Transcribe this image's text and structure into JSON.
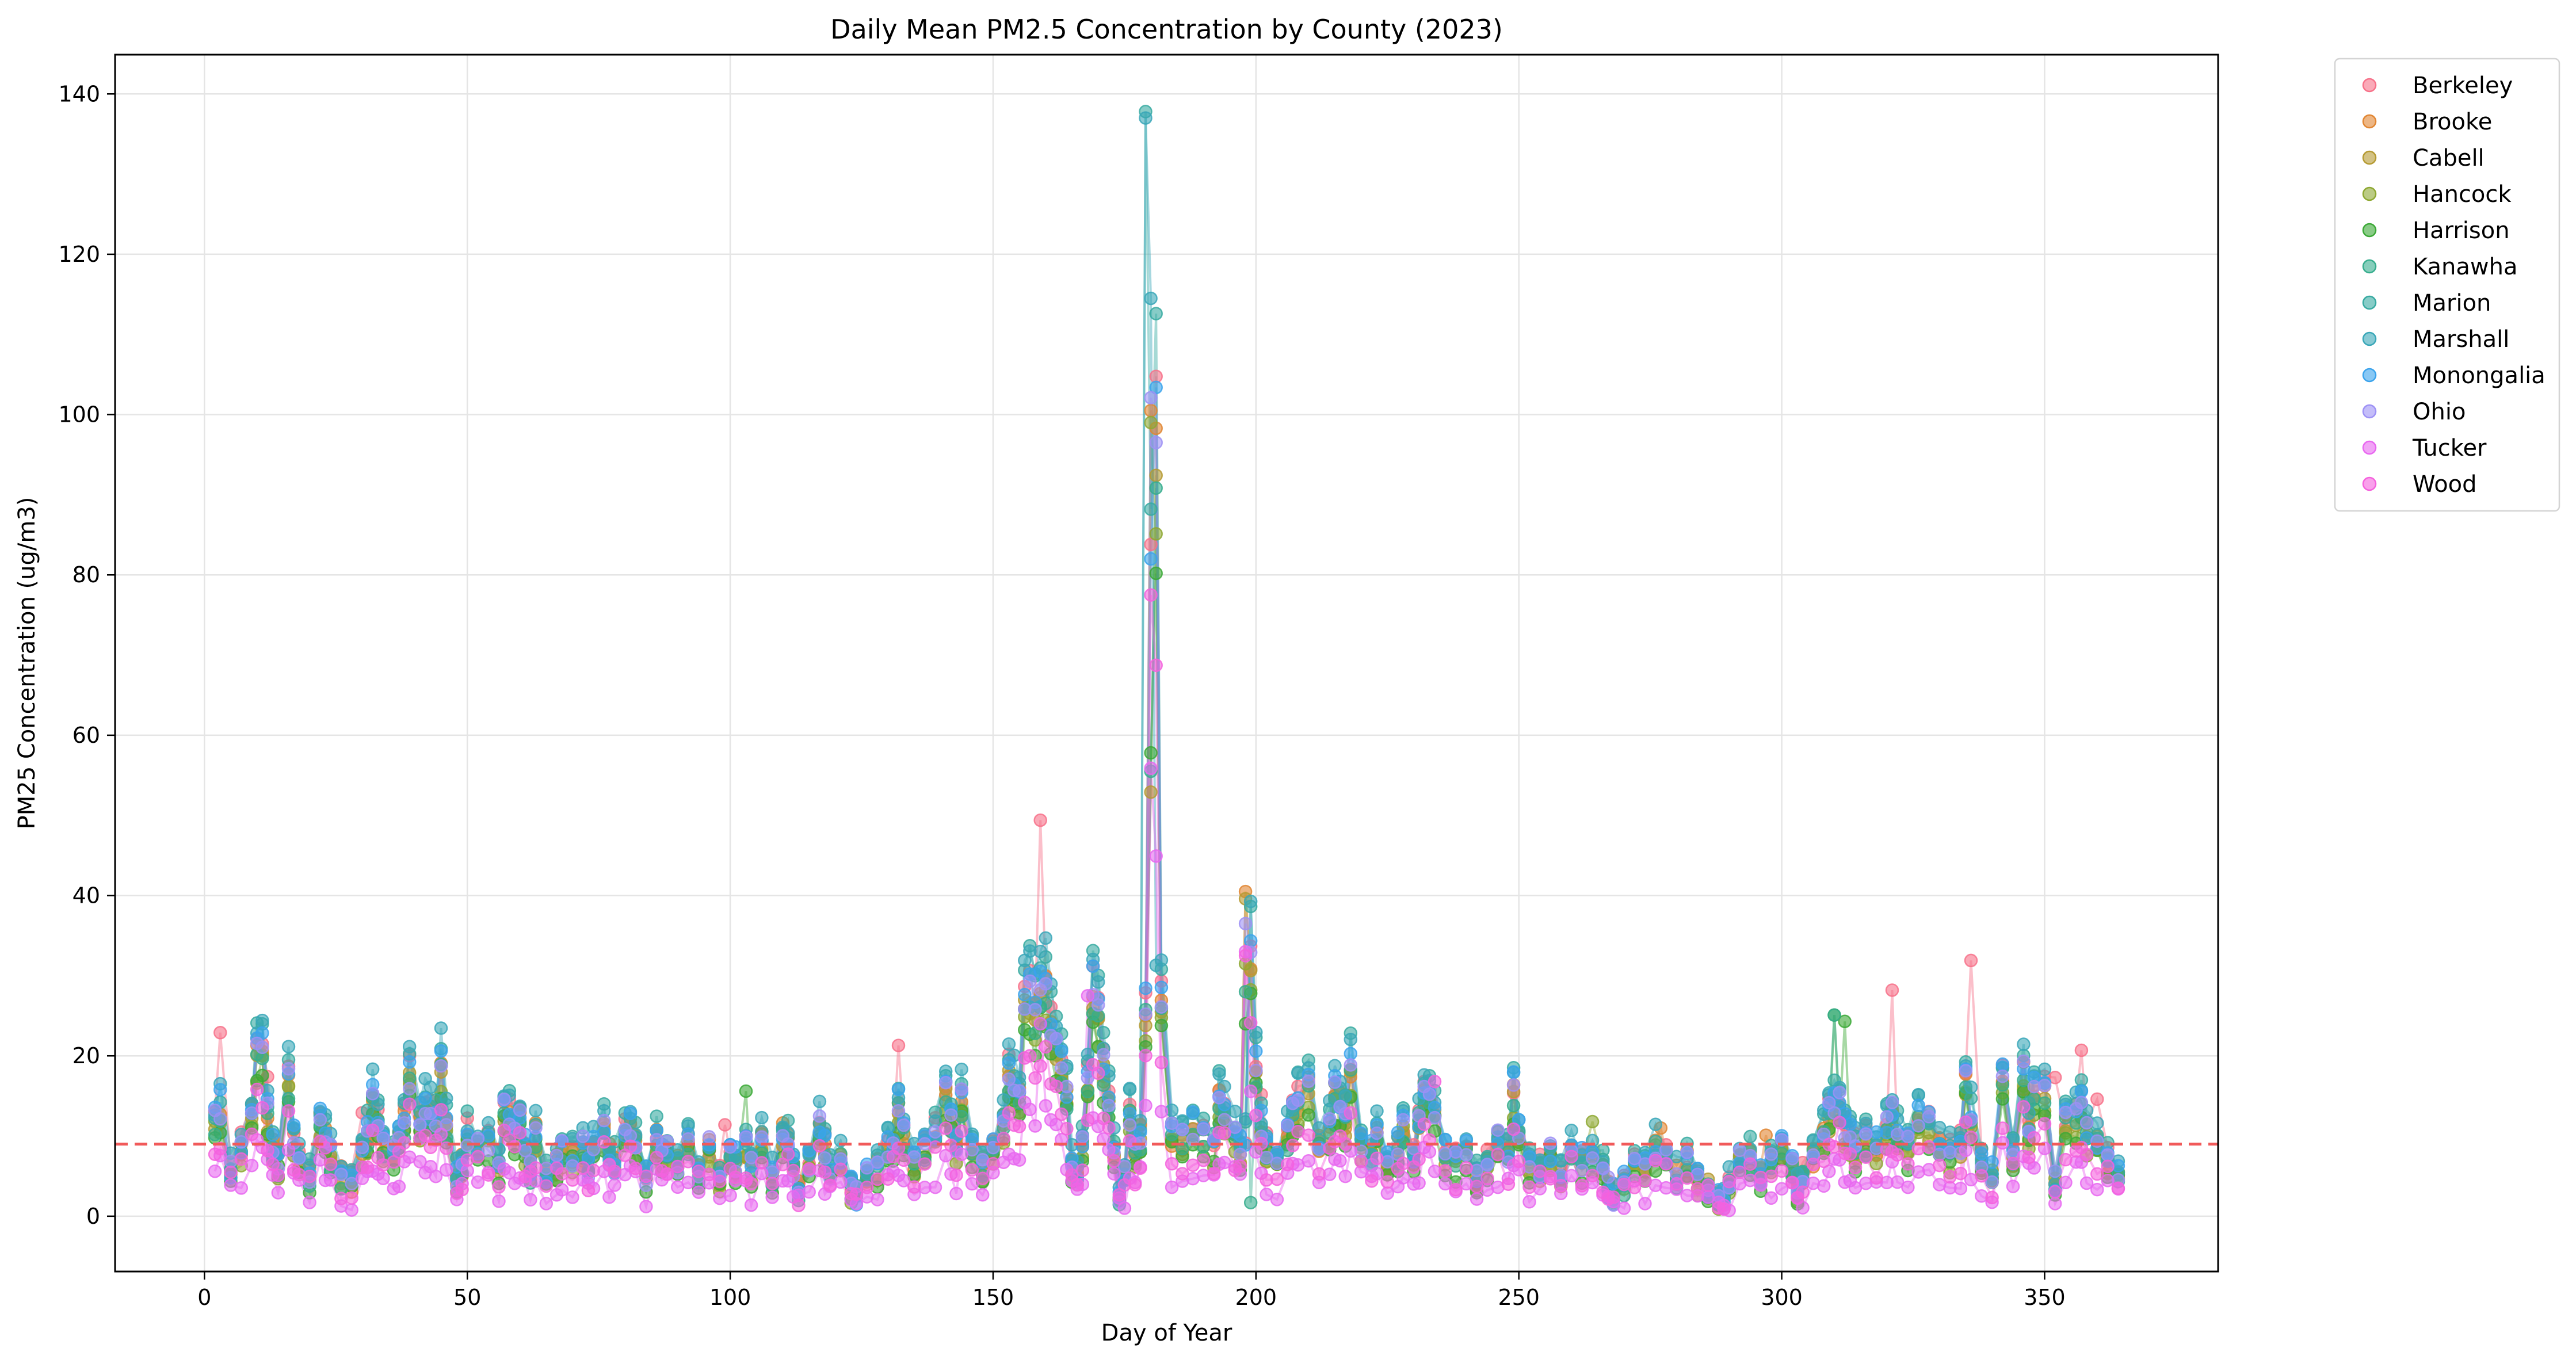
{
  "chart_data": {
    "type": "scatter",
    "title": "Daily Mean PM2.5 Concentration by County (2023)",
    "xlabel": "Day of Year",
    "ylabel": "PM25 Concentration (ug/m3)",
    "xlim": [
      -17,
      383
    ],
    "ylim": [
      -6.9,
      144.9
    ],
    "xticks": [
      0,
      50,
      100,
      150,
      200,
      250,
      300,
      350
    ],
    "yticks": [
      0,
      20,
      40,
      60,
      80,
      100,
      120,
      140
    ],
    "grid": true,
    "legend_position": "outside-top-right",
    "reference_line": {
      "y": 9.0,
      "color": "#f15a5a",
      "style": "dashed"
    },
    "base_profile": {
      "x": [
        2,
        3,
        5,
        7,
        9,
        10,
        11,
        12,
        13,
        14,
        16,
        17,
        18,
        20,
        22,
        23,
        24,
        26,
        28,
        30,
        31,
        32,
        33,
        34,
        36,
        37,
        38,
        39,
        41,
        42,
        43,
        44,
        45,
        46,
        48,
        49,
        50,
        52,
        54,
        56,
        57,
        58,
        59,
        60,
        61,
        62,
        63,
        65,
        67,
        68,
        70,
        72,
        73,
        74,
        76,
        77,
        78,
        80,
        81,
        82,
        84,
        86,
        87,
        88,
        90,
        92,
        94,
        96,
        98,
        100,
        101,
        103,
        104,
        106,
        108,
        110,
        111,
        112,
        113,
        115,
        117,
        118,
        119,
        121,
        123,
        124,
        126,
        128,
        130,
        131,
        132,
        133,
        135,
        137,
        139,
        141,
        142,
        143,
        144,
        146,
        148,
        150,
        152,
        153,
        154,
        155,
        156,
        157,
        158,
        159,
        160,
        161,
        162,
        163,
        164,
        165,
        166,
        167,
        168,
        169,
        170,
        171,
        172,
        173,
        174,
        175,
        176,
        177,
        178,
        179,
        180,
        181,
        182,
        184,
        186,
        188,
        190,
        192,
        193,
        194,
        196,
        197,
        198,
        199,
        200,
        201,
        202,
        204,
        206,
        207,
        208,
        210,
        212,
        214,
        215,
        216,
        217,
        218,
        220,
        222,
        223,
        225,
        227,
        228,
        230,
        231,
        232,
        233,
        234,
        236,
        238,
        240,
        242,
        244,
        246,
        248,
        249,
        250,
        252,
        254,
        256,
        258,
        260,
        262,
        264,
        266,
        267,
        268,
        270,
        272,
        274,
        276,
        278,
        280,
        282,
        284,
        286,
        288,
        289,
        290,
        292,
        294,
        296,
        298,
        300,
        302,
        303,
        304,
        306,
        308,
        309,
        310,
        311,
        312,
        313,
        314,
        316,
        318,
        320,
        321,
        322,
        324,
        326,
        328,
        330,
        332,
        334,
        335,
        336,
        338,
        340,
        342,
        344,
        346,
        347,
        348,
        350,
        352,
        354,
        356,
        357,
        358,
        360,
        362,
        364
      ],
      "y": [
        14,
        16,
        7,
        10,
        15,
        24,
        25,
        15,
        10,
        8,
        20,
        12,
        8,
        6,
        14,
        12,
        9,
        6,
        5,
        10,
        12,
        17,
        14,
        11,
        9,
        12,
        14,
        21,
        14,
        16,
        15,
        14,
        22,
        14,
        6,
        8,
        12,
        10,
        11,
        8,
        16,
        15,
        13,
        15,
        10,
        7,
        12,
        6,
        8,
        10,
        9,
        10,
        7,
        11,
        13,
        9,
        8,
        12,
        13,
        11,
        6,
        12,
        9,
        10,
        8,
        11,
        7,
        10,
        6,
        9,
        8,
        10,
        7,
        11,
        6,
        12,
        11,
        7,
        4,
        8,
        13,
        10,
        7,
        8,
        4,
        3,
        6,
        7,
        10,
        11,
        16,
        12,
        8,
        10,
        12,
        18,
        14,
        10,
        17,
        9,
        7,
        10,
        14,
        21,
        19,
        18,
        32,
        33,
        30,
        33,
        34,
        28,
        25,
        22,
        18,
        8,
        6,
        10,
        20,
        33,
        30,
        22,
        18,
        10,
        3,
        6,
        15,
        9,
        12,
        31,
        137,
        115,
        32,
        12,
        11,
        13,
        12,
        10,
        18,
        15,
        12,
        10,
        11,
        38,
        22,
        13,
        10,
        8,
        12,
        15,
        17,
        19,
        11,
        13,
        18,
        16,
        14,
        22,
        11,
        9,
        12,
        8,
        10,
        13,
        9,
        14,
        18,
        17,
        15,
        9,
        8,
        10,
        6,
        8,
        11,
        9,
        18,
        12,
        8,
        7,
        9,
        6,
        10,
        8,
        9,
        7,
        4,
        3,
        5,
        8,
        7,
        10,
        9,
        6,
        8,
        5,
        4,
        3,
        2,
        5,
        8,
        9,
        6,
        9,
        10,
        7,
        4,
        6,
        9,
        12,
        15,
        16,
        17,
        13,
        12,
        10,
        11,
        10,
        13,
        15,
        12,
        10,
        14,
        13,
        10,
        9,
        11,
        20,
        15,
        8,
        6,
        20,
        9,
        21,
        13,
        18,
        18,
        5,
        14,
        15,
        16,
        12,
        11,
        8,
        6
      ]
    },
    "series": [
      {
        "name": "Berkeley",
        "color": "#f77189",
        "y_scale": 0.9,
        "spikes": [
          [
            3,
            22.9
          ],
          [
            12,
            17.4
          ],
          [
            30,
            12.9
          ],
          [
            99,
            11.4
          ],
          [
            132,
            21.3
          ],
          [
            159,
            49.4
          ],
          [
            180,
            83.8
          ],
          [
            201,
            15.2
          ],
          [
            321,
            28.2
          ],
          [
            336,
            31.9
          ],
          [
            352,
            17.3
          ],
          [
            357,
            20.7
          ],
          [
            360,
            14.6
          ]
        ]
      },
      {
        "name": "Brooke",
        "color": "#e18632",
        "y_scale": 0.85,
        "spikes": [
          [
            180,
            100.5
          ],
          [
            198,
            40.5
          ],
          [
            277,
            11.0
          ],
          [
            297,
            10.1
          ]
        ]
      },
      {
        "name": "Cabell",
        "color": "#b59a32",
        "y_scale": 0.8,
        "spikes": [
          [
            180,
            52.9
          ],
          [
            198,
            39.6
          ],
          [
            39,
            17.9
          ],
          [
            216,
            15.4
          ]
        ]
      },
      {
        "name": "Hancock",
        "color": "#8ea832",
        "y_scale": 0.75,
        "spikes": [
          [
            180,
            99.0
          ],
          [
            198,
            31.5
          ],
          [
            264,
            11.8
          ]
        ]
      },
      {
        "name": "Harrison",
        "color": "#3ba936",
        "y_scale": 0.7,
        "spikes": [
          [
            103,
            15.6
          ],
          [
            159,
            26.0
          ],
          [
            180,
            57.8
          ],
          [
            198,
            24.0
          ],
          [
            310,
            25.1
          ],
          [
            312,
            24.3
          ]
        ]
      },
      {
        "name": "Kanawha",
        "color": "#36ad8d",
        "y_scale": 0.8,
        "spikes": [
          [
            180,
            55.5
          ],
          [
            198,
            28.0
          ],
          [
            199,
            1.7
          ],
          [
            310,
            25.1
          ]
        ]
      },
      {
        "name": "Marion",
        "color": "#37aaa1",
        "y_scale": 0.98,
        "spikes": [
          [
            179,
            137.8
          ],
          [
            180,
            88.2
          ]
        ]
      },
      {
        "name": "Marshall",
        "color": "#39a7b8",
        "y_scale": 1.0,
        "spikes": [
          [
            179,
            137.0
          ],
          [
            180,
            114.5
          ],
          [
            181,
            31.3
          ]
        ]
      },
      {
        "name": "Monongalia",
        "color": "#3ba3ec",
        "y_scale": 0.9,
        "spikes": [
          [
            180,
            82.0
          ],
          [
            249,
            18.0
          ]
        ]
      },
      {
        "name": "Ohio",
        "color": "#9d91f5",
        "y_scale": 0.85,
        "spikes": [
          [
            180,
            102.1
          ],
          [
            198,
            36.5
          ],
          [
            39,
            15.9
          ]
        ]
      },
      {
        "name": "Tucker",
        "color": "#e867f0",
        "y_scale": 0.4,
        "spikes": [
          [
            159,
            24.0
          ],
          [
            168,
            27.5
          ],
          [
            198,
            33.0
          ],
          [
            175,
            1.0
          ]
        ]
      },
      {
        "name": "Wood",
        "color": "#f561dd",
        "y_scale": 0.6,
        "spikes": [
          [
            180,
            77.5
          ],
          [
            198,
            32.5
          ],
          [
            234,
            16.8
          ]
        ]
      }
    ]
  }
}
